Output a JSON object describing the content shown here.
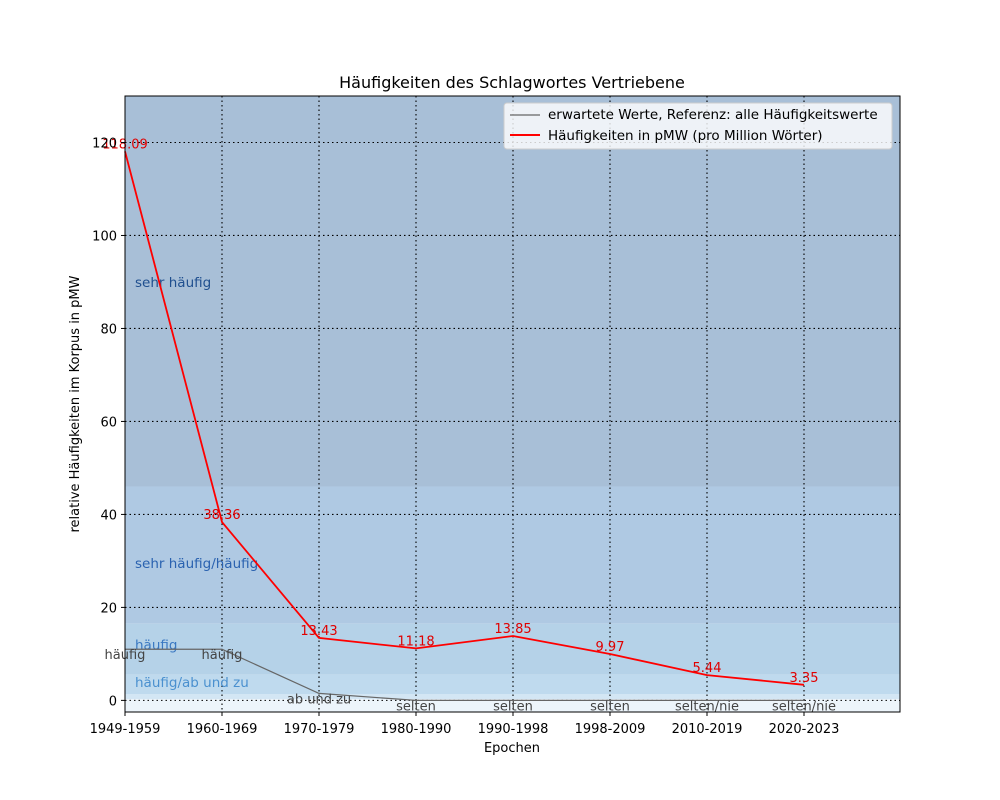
{
  "chart_data": {
    "type": "line",
    "title": "Häufigkeiten des Schlagwortes Vertriebene",
    "xlabel": "Epochen",
    "ylabel": "relative Häufigkeiten im Korpus in pMW",
    "categories": [
      "1949-1959",
      "1960-1969",
      "1970-1979",
      "1980-1990",
      "1990-1998",
      "1998-2009",
      "2010-2019",
      "2020-2023"
    ],
    "ylim": [
      -2.5,
      130
    ],
    "yticks": [
      0,
      20,
      40,
      60,
      80,
      100,
      120
    ],
    "grid": true,
    "legend_position": "top-right",
    "bands": [
      {
        "label": "sehr häufig",
        "from": 46,
        "to": 130,
        "color": "#a8bfd7",
        "label_color": "#1f4f8f",
        "label_y": 90
      },
      {
        "label": "sehr häufig/häufig",
        "from": 16.5,
        "to": 46,
        "color": "#afc9e3",
        "label_color": "#2a62b0",
        "label_y": 29.5
      },
      {
        "label": "häufig",
        "from": 5.5,
        "to": 16.5,
        "color": "#b5d2e8",
        "label_color": "#3a78c2",
        "label_y": 12
      },
      {
        "label": "häufig/ab und zu",
        "from": 1.3,
        "to": 5.5,
        "color": "#bfdaee",
        "label_color": "#4a90cf",
        "label_y": 4
      },
      {
        "label": "",
        "from": 0.3,
        "to": 1.3,
        "color": "#d3e6f4",
        "label_color": "#4a90cf",
        "label_y": 0
      },
      {
        "label": "",
        "from": -2.5,
        "to": 0.3,
        "color": "#edf5fb",
        "label_color": "#4a90cf",
        "label_y": 0
      }
    ],
    "series": [
      {
        "name": "erwartete Werte, Referenz: alle Häufigkeitswerte",
        "color": "#666666",
        "values": [
          11,
          11,
          1.5,
          0,
          0,
          0,
          0,
          0
        ],
        "point_labels": [
          "häufig",
          "häufig",
          "ab und zu",
          "selten",
          "selten",
          "selten",
          "selten/nie",
          "selten/nie"
        ]
      },
      {
        "name": "Häufigkeiten in pMW (pro Million Wörter)",
        "color": "#ff0000",
        "values": [
          118.09,
          38.36,
          13.43,
          11.18,
          13.85,
          9.97,
          5.44,
          3.35
        ],
        "value_labels": [
          "118.09",
          "38.36",
          "13.43",
          "11.18",
          "13.85",
          "9.97",
          "5.44",
          "3.35"
        ]
      }
    ]
  }
}
